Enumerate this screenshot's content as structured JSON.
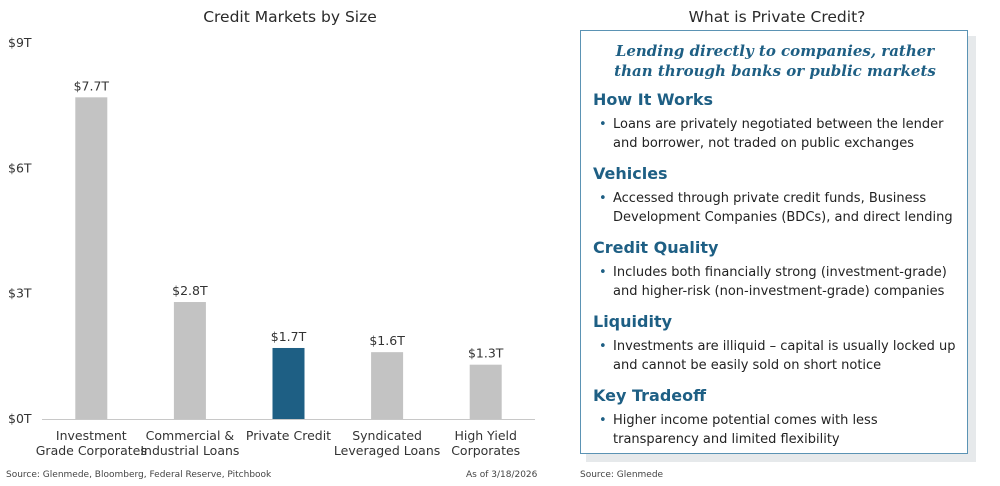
{
  "chart_data": {
    "type": "bar",
    "title": "Credit Markets by Size",
    "categories": [
      [
        "Investment",
        "Grade Corporates"
      ],
      [
        "Commercial &",
        "Industrial Loans"
      ],
      [
        "Private Credit"
      ],
      [
        "Syndicated",
        "Leveraged Loans"
      ],
      [
        "High Yield",
        "Corporates"
      ]
    ],
    "values": [
      7.7,
      2.8,
      1.7,
      1.6,
      1.3
    ],
    "data_labels": [
      "$7.7T",
      "$2.8T",
      "$1.7T",
      "$1.6T",
      "$1.3T"
    ],
    "bar_colors": [
      "#c3c3c3",
      "#c3c3c3",
      "#1e5f84",
      "#c3c3c3",
      "#c3c3c3"
    ],
    "yticks": [
      0,
      3,
      6,
      9
    ],
    "ytick_labels": [
      "$0T",
      "$3T",
      "$6T",
      "$9T"
    ],
    "ylim": [
      0,
      9
    ],
    "xlabel": "",
    "ylabel": "",
    "grid": false
  },
  "footer": {
    "source_left": "Source: Glenmede, Bloomberg, Federal Reserve, Pitchbook",
    "as_of": "As of 3/18/2026",
    "source_right": "Source: Glenmede"
  },
  "sidebar": {
    "title": "What is Private Credit?",
    "tagline_line1": "Lending directly to companies, rather",
    "tagline_line2": "than through banks or public markets",
    "sections": [
      {
        "heading": "How It Works",
        "text": "Loans are privately negotiated between the lender and borrower, not traded on public exchanges"
      },
      {
        "heading": "Vehicles",
        "text": "Accessed through private credit funds, Business Development Companies (BDCs), and direct lending"
      },
      {
        "heading": "Credit Quality",
        "text": "Includes both financially strong (investment-grade) and higher-risk (non-investment-grade) companies"
      },
      {
        "heading": "Liquidity",
        "text": "Investments are illiquid – capital is usually locked up and cannot be easily sold on short notice"
      },
      {
        "heading": "Key Tradeoff",
        "text": "Higher income potential comes with less transparency and limited flexibility"
      }
    ],
    "bullet_symbol": "•",
    "accent_color": "#1e5f84"
  }
}
